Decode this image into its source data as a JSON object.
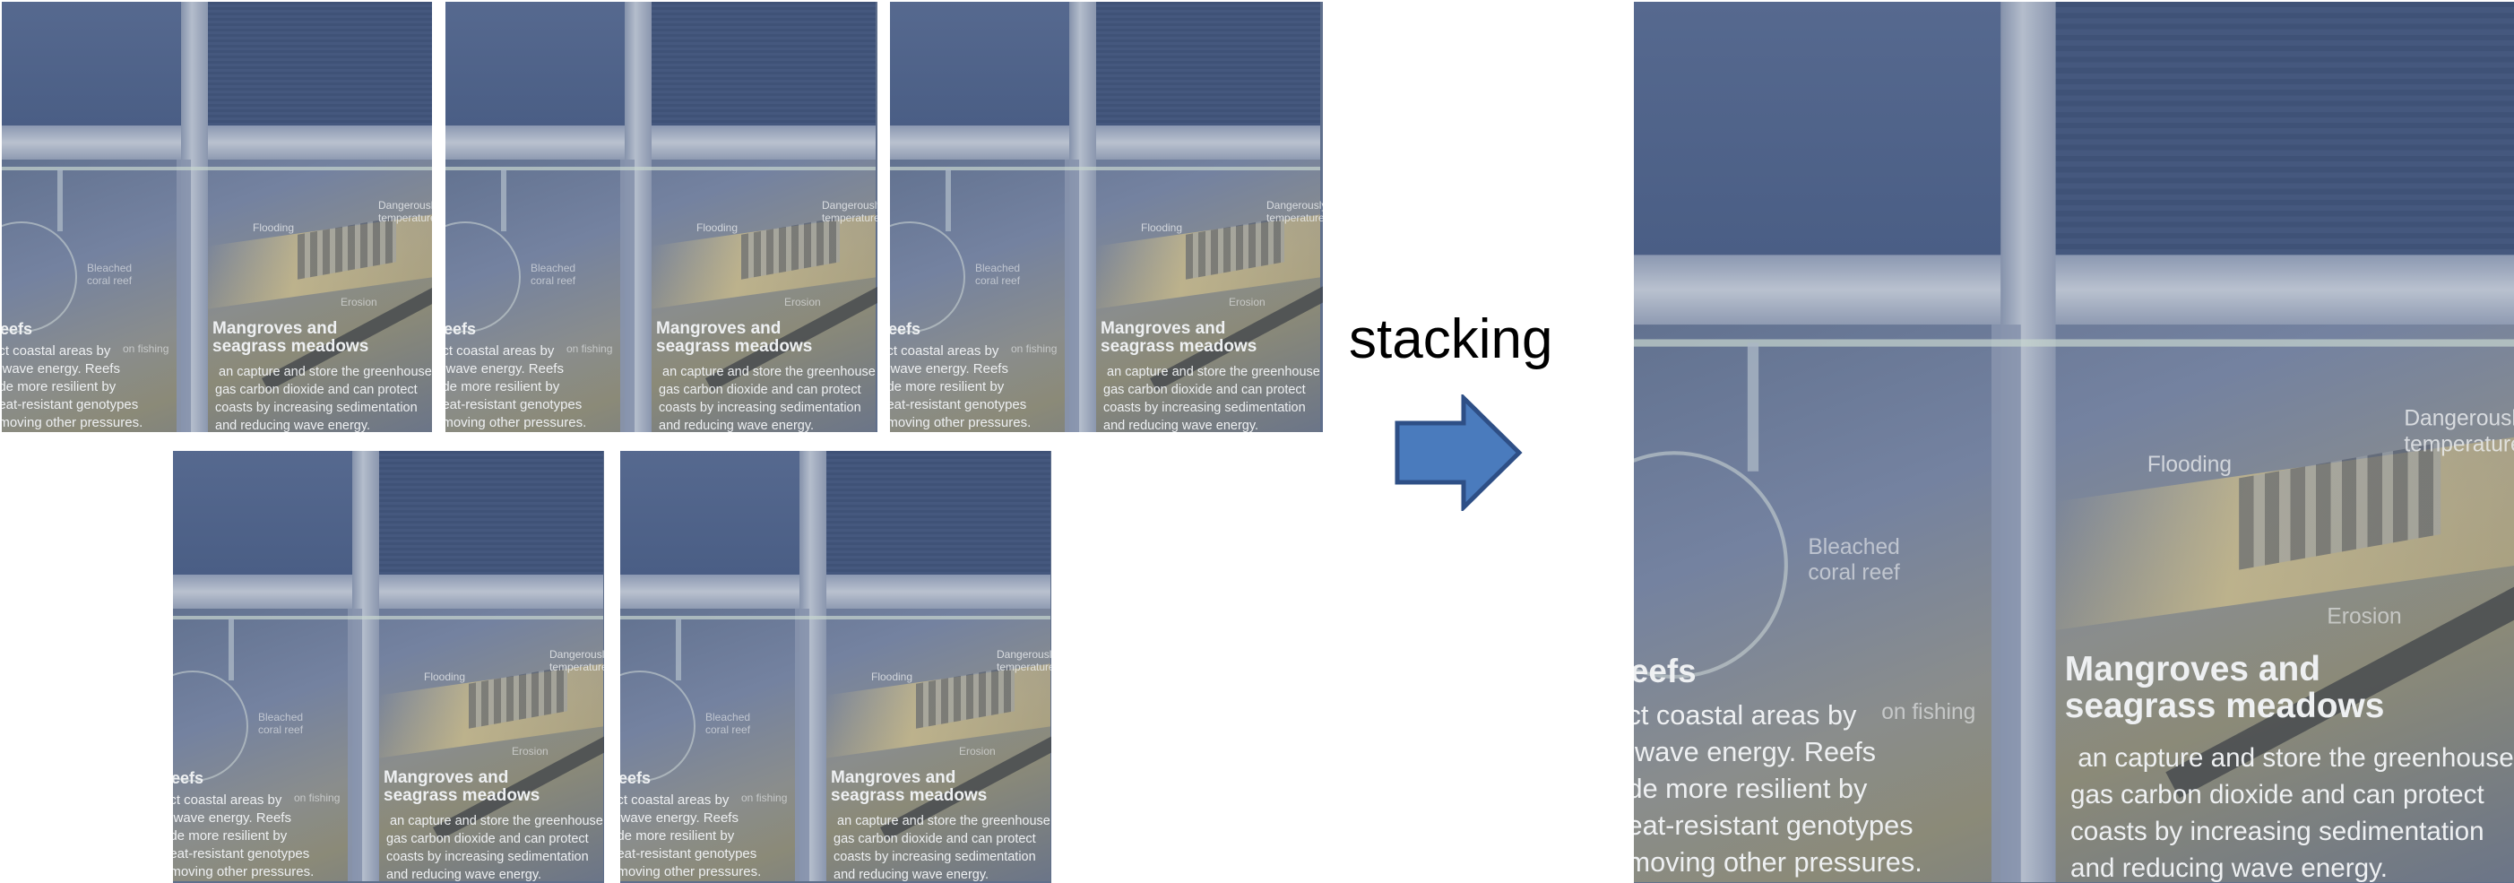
{
  "label": "stacking",
  "scene_text": {
    "flooding": "Flooding",
    "dangerous": "Dangerously h",
    "dangerous_2": "temperatures",
    "bleached": "Bleached",
    "bleached_2": "coral reef",
    "reefs_heading": "eefs",
    "reefs_line1": "ect coastal areas by",
    "reefs_line2": "g wave energy. Reefs",
    "reefs_line3": "ade more resilient by",
    "reefs_line4": "heat-resistant genotypes",
    "reefs_line5": "emoving other pressures.",
    "fishing": "on fishing",
    "mangrove_line1": "Mangroves and",
    "mangrove_line2": "seagrass meadows",
    "mangrove_body1": "an capture and store the greenhouse",
    "mangrove_body2": "gas carbon dioxide and can protect",
    "mangrove_body3": "coasts by increasing sedimentation",
    "mangrove_body4": "and reducing wave energy.",
    "erosion": "Erosion"
  },
  "colors": {
    "arrow_fill": "#4a7bbd",
    "arrow_stroke": "#2e4f86"
  },
  "icons": {
    "arrow": "right-arrow-icon"
  }
}
